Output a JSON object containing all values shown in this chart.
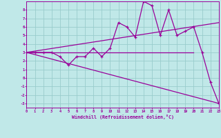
{
  "xlabel": "Windchill (Refroidissement éolien,°C)",
  "bg_color": "#c0e8e8",
  "line_color": "#990099",
  "grid_color": "#99cccc",
  "xlim": [
    0,
    23
  ],
  "ylim": [
    -3.5,
    9.0
  ],
  "xticks": [
    0,
    1,
    2,
    3,
    4,
    5,
    6,
    7,
    8,
    9,
    10,
    11,
    12,
    13,
    14,
    15,
    16,
    17,
    18,
    19,
    20,
    21,
    22,
    23
  ],
  "yticks": [
    -3,
    -2,
    -1,
    0,
    1,
    2,
    3,
    4,
    5,
    6,
    7,
    8
  ],
  "line1_x": [
    0,
    1,
    2,
    3,
    4,
    5,
    6,
    7,
    8,
    9,
    10,
    11,
    12,
    13,
    14,
    15,
    16,
    17,
    18,
    19,
    20,
    21,
    22,
    23
  ],
  "line1_y": [
    3.0,
    3.0,
    3.0,
    3.0,
    2.5,
    1.5,
    2.5,
    2.5,
    3.5,
    2.5,
    3.5,
    6.5,
    6.0,
    4.8,
    9.0,
    8.5,
    5.0,
    8.0,
    5.0,
    5.5,
    6.0,
    3.0,
    -0.5,
    -3.0
  ],
  "line2_x": [
    0,
    20
  ],
  "line2_y": [
    3.0,
    3.0
  ],
  "line3_x": [
    0,
    23
  ],
  "line3_y": [
    3.0,
    -3.0
  ],
  "line4_x": [
    0,
    23
  ],
  "line4_y": [
    3.0,
    6.5
  ]
}
